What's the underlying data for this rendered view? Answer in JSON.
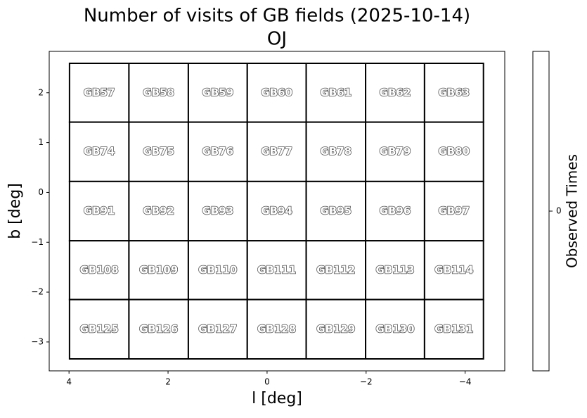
{
  "chart_data": {
    "type": "field-grid",
    "title": "Number of visits of GB fields (2025-10-14)",
    "subtitle": "OJ",
    "x_label": "l [deg]",
    "y_label": "b [deg]",
    "xlim": [
      4.4,
      -4.8
    ],
    "ylim": [
      -3.58,
      2.83
    ],
    "xticks": [
      4,
      2,
      0,
      {
        "value": -2,
        "label": "−2"
      },
      {
        "value": -4,
        "label": "−4"
      }
    ],
    "yticks": [
      {
        "value": -3,
        "label": "−3"
      },
      {
        "value": -2,
        "label": "−2"
      },
      {
        "value": -1,
        "label": "−1"
      },
      0,
      1,
      2
    ],
    "x_edges": [
      3.99,
      2.79,
      1.59,
      0.4,
      -0.79,
      -1.99,
      -3.18,
      -4.37
    ],
    "y_edges": [
      2.59,
      1.41,
      0.22,
      -0.97,
      -2.15,
      -3.34
    ],
    "fields": [
      [
        "GB57",
        "GB58",
        "GB59",
        "GB60",
        "GB61",
        "GB62",
        "GB63"
      ],
      [
        "GB74",
        "GB75",
        "GB76",
        "GB77",
        "GB78",
        "GB79",
        "GB80"
      ],
      [
        "GB91",
        "GB92",
        "GB93",
        "GB94",
        "GB95",
        "GB96",
        "GB97"
      ],
      [
        "GB108",
        "GB109",
        "GB110",
        "GB111",
        "GB112",
        "GB113",
        "GB114"
      ],
      [
        "GB125",
        "GB126",
        "GB127",
        "GB128",
        "GB129",
        "GB130",
        "GB131"
      ]
    ],
    "values": [
      [
        0,
        0,
        0,
        0,
        0,
        0,
        0
      ],
      [
        0,
        0,
        0,
        0,
        0,
        0,
        0
      ],
      [
        0,
        0,
        0,
        0,
        0,
        0,
        0
      ],
      [
        0,
        0,
        0,
        0,
        0,
        0,
        0
      ],
      [
        0,
        0,
        0,
        0,
        0,
        0,
        0
      ]
    ],
    "color": "#ffffff",
    "colorbar": {
      "label": "Observed Times",
      "lim": [
        -0.1,
        0.1
      ],
      "ticks": [
        0
      ]
    }
  }
}
